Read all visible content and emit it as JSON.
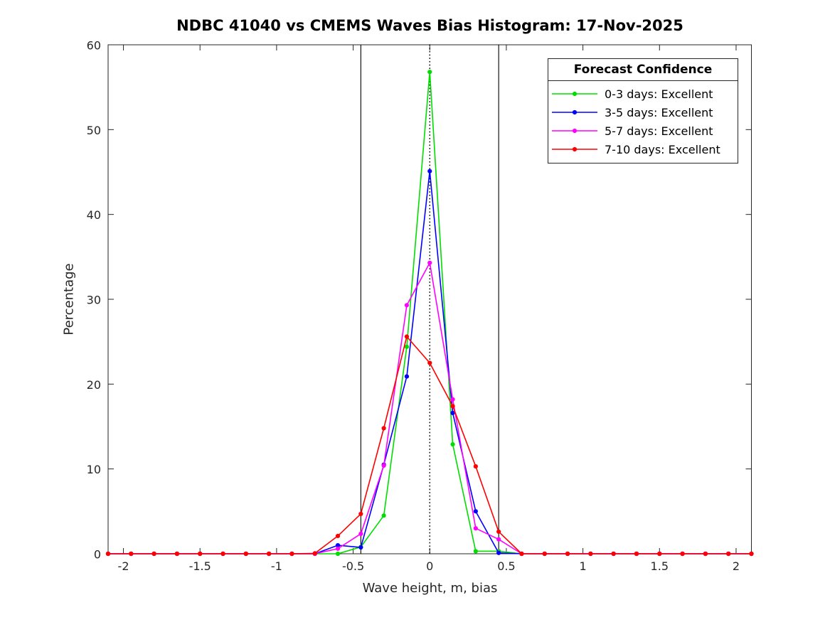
{
  "chart_data": {
    "type": "line",
    "title": "NDBC 41040 vs CMEMS Waves Bias Histogram: 17-Nov-2025",
    "xlabel": "Wave height, m, bias",
    "ylabel": "Percentage",
    "xlim": [
      -2.1,
      2.1
    ],
    "ylim": [
      0,
      60
    ],
    "xticks": [
      -2,
      -1.5,
      -1,
      -0.5,
      0,
      0.5,
      1,
      1.5,
      2
    ],
    "xtick_labels": [
      "-2",
      "-1.5",
      "-1",
      "-0.5",
      "0",
      "0.5",
      "1",
      "1.5",
      "2"
    ],
    "yticks": [
      0,
      10,
      20,
      30,
      40,
      50,
      60
    ],
    "ytick_labels": [
      "0",
      "10",
      "20",
      "30",
      "40",
      "50",
      "60"
    ],
    "grid": false,
    "x": [
      -2.1,
      -1.95,
      -1.8,
      -1.65,
      -1.5,
      -1.35,
      -1.2,
      -1.05,
      -0.9,
      -0.75,
      -0.6,
      -0.45,
      -0.3,
      -0.15,
      0,
      0.15,
      0.3,
      0.45,
      0.6,
      0.75,
      0.9,
      1.05,
      1.2,
      1.35,
      1.5,
      1.65,
      1.8,
      1.95,
      2.1
    ],
    "series": [
      {
        "name": "0-3-days",
        "label": "0-3 days: Excellent",
        "color": "#00dd00",
        "values": [
          0,
          0,
          0,
          0,
          0,
          0,
          0,
          0,
          0,
          0,
          0,
          0.8,
          4.5,
          24.4,
          56.8,
          12.9,
          0.3,
          0.3,
          0,
          0,
          0,
          0,
          0,
          0,
          0,
          0,
          0,
          0,
          0
        ]
      },
      {
        "name": "3-5-days",
        "label": "3-5 days: Excellent",
        "color": "#0000ff",
        "values": [
          0,
          0,
          0,
          0,
          0,
          0,
          0,
          0,
          0,
          0,
          1.0,
          0.75,
          10.5,
          20.9,
          45.1,
          16.6,
          5.0,
          0.1,
          0,
          0,
          0,
          0,
          0,
          0,
          0,
          0,
          0,
          0,
          0
        ]
      },
      {
        "name": "5-7-days",
        "label": "5-7 days: Excellent",
        "color": "#ff00ff",
        "values": [
          0,
          0,
          0,
          0,
          0,
          0,
          0,
          0,
          0,
          0,
          0.6,
          2.35,
          10.4,
          29.3,
          34.3,
          18.2,
          3.0,
          1.7,
          0,
          0,
          0,
          0,
          0,
          0,
          0,
          0,
          0,
          0,
          0
        ]
      },
      {
        "name": "7-10-days",
        "label": "7-10 days: Excellent",
        "color": "#ff0000",
        "values": [
          0,
          0,
          0,
          0,
          0,
          0,
          0,
          0,
          0,
          0.05,
          2.1,
          4.7,
          14.8,
          25.6,
          22.5,
          17.4,
          10.3,
          2.6,
          0,
          0,
          0,
          0,
          0,
          0,
          0,
          0,
          0,
          0,
          0
        ]
      }
    ],
    "reference_lines": [
      {
        "name": "bias-threshold-left",
        "x": -0.45,
        "style": "solid",
        "color": "#000000"
      },
      {
        "name": "zero-bias",
        "x": 0,
        "style": "dotted",
        "color": "#000000"
      },
      {
        "name": "bias-threshold-right",
        "x": 0.45,
        "style": "solid",
        "color": "#000000"
      }
    ],
    "legend": {
      "title": "Forecast Confidence",
      "position": "top-right"
    }
  }
}
